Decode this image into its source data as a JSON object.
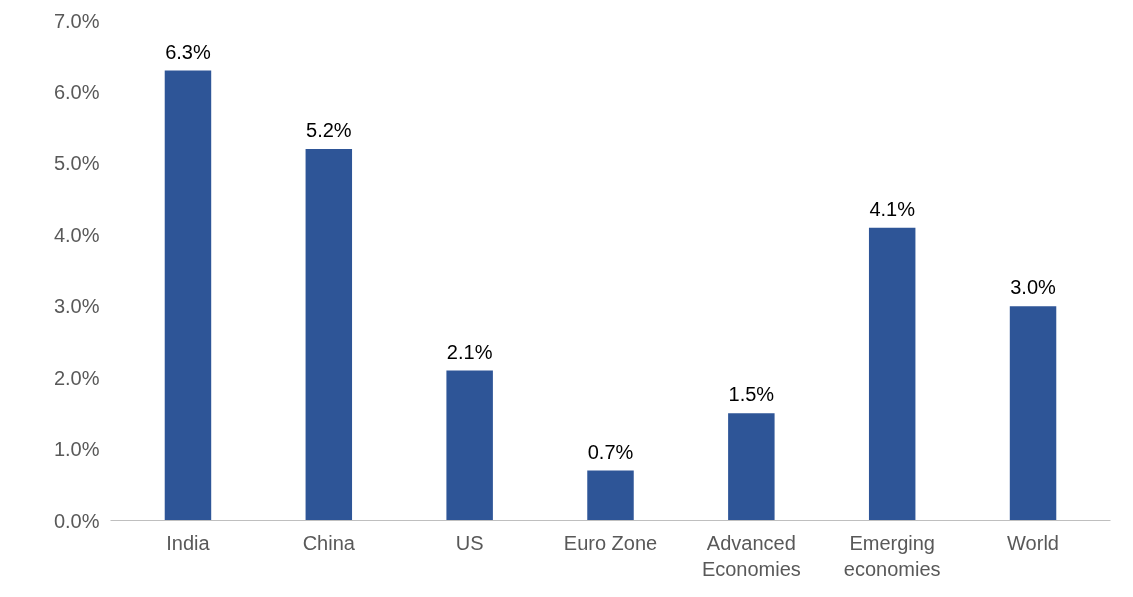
{
  "chart_data": {
    "type": "bar",
    "categories": [
      "India",
      "China",
      "US",
      "Euro Zone",
      "Advanced\nEconomies",
      "Emerging\neconomies",
      "World"
    ],
    "values": [
      6.3,
      5.2,
      2.1,
      0.7,
      1.5,
      4.1,
      3.0
    ],
    "value_labels": [
      "6.3%",
      "5.2%",
      "2.1%",
      "0.7%",
      "1.5%",
      "4.1%",
      "3.0%"
    ],
    "color": "#2e5597",
    "ylim": [
      0,
      7
    ],
    "yticks": [
      {
        "value": 0,
        "label": "0.0%"
      },
      {
        "value": 1,
        "label": "1.0%"
      },
      {
        "value": 2,
        "label": "2.0%"
      },
      {
        "value": 3,
        "label": "3.0%"
      },
      {
        "value": 4,
        "label": "4.0%"
      },
      {
        "value": 5,
        "label": "5.0%"
      },
      {
        "value": 6,
        "label": "6.0%"
      },
      {
        "value": 7,
        "label": "7.0%"
      }
    ],
    "grid": false
  }
}
